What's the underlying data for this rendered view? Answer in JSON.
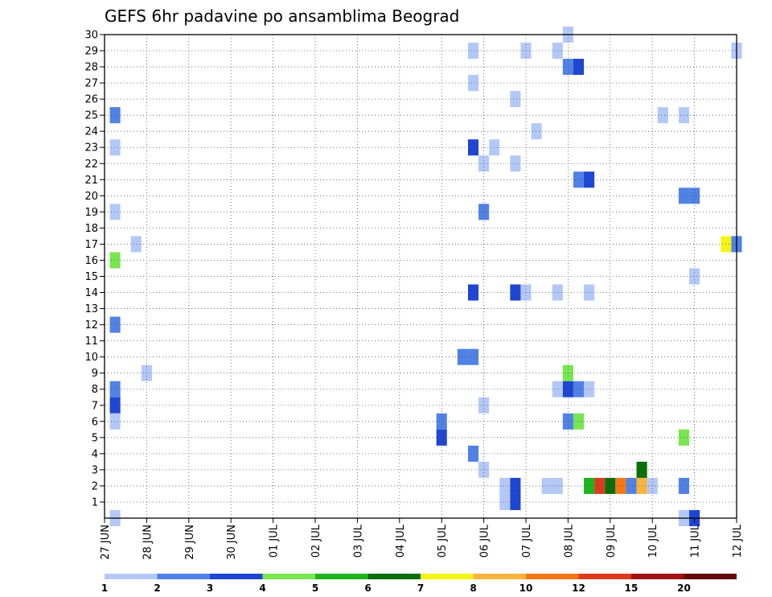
{
  "chart_data": {
    "type": "heatmap",
    "title": "GEFS 6hr padavine po ansamblima Beograd",
    "xlabel": "",
    "ylabel": "",
    "x_ticks": [
      "27 JUN",
      "28 JUN",
      "29 JUN",
      "30 JUN",
      "01 JUL",
      "02 JUL",
      "03 JUL",
      "04 JUL",
      "05 JUL",
      "06 JUL",
      "07 JUL",
      "08 JUL",
      "09 JUL",
      "10 JUL",
      "11 JUL",
      "12 JUL"
    ],
    "y_ticks": [
      1,
      2,
      3,
      4,
      5,
      6,
      7,
      8,
      9,
      10,
      11,
      12,
      13,
      14,
      15,
      16,
      17,
      18,
      19,
      20,
      21,
      22,
      23,
      24,
      25,
      26,
      27,
      28,
      29,
      30
    ],
    "ylim": [
      0,
      30
    ],
    "grid": true,
    "time_step_hours": 6,
    "legend_placement": "bottom",
    "legend": {
      "labels": [
        "1",
        "2",
        "3",
        "4",
        "5",
        "6",
        "7",
        "8",
        "10",
        "12",
        "15",
        "20"
      ],
      "colors": [
        "#b4c8f8",
        "#5082e6",
        "#1e46d2",
        "#78e650",
        "#1eb41e",
        "#0a6e0a",
        "#f5f514",
        "#fab43c",
        "#f57814",
        "#dc3c1e",
        "#a01414",
        "#640a0a"
      ]
    },
    "cells_note": "[day_offset_from_27_JUN, member, precip_class_index]",
    "cells": [
      [
        0.25,
        0,
        0
      ],
      [
        0.25,
        25,
        1
      ],
      [
        0.25,
        23,
        0
      ],
      [
        0.25,
        19,
        0
      ],
      [
        0.25,
        16,
        3
      ],
      [
        0.25,
        12,
        1
      ],
      [
        0.25,
        8,
        1
      ],
      [
        0.25,
        7,
        2
      ],
      [
        0.25,
        6,
        0
      ],
      [
        0.75,
        17,
        0
      ],
      [
        1.0,
        9,
        0
      ],
      [
        8.0,
        6,
        1
      ],
      [
        8.0,
        5,
        2
      ],
      [
        8.5,
        10,
        1
      ],
      [
        8.75,
        10,
        1
      ],
      [
        8.75,
        29,
        0
      ],
      [
        8.75,
        27,
        0
      ],
      [
        8.75,
        23,
        2
      ],
      [
        8.75,
        14,
        2
      ],
      [
        8.75,
        4,
        1
      ],
      [
        9.0,
        22,
        0
      ],
      [
        9.0,
        19,
        1
      ],
      [
        9.0,
        7,
        0
      ],
      [
        9.0,
        3,
        0
      ],
      [
        9.25,
        23,
        0
      ],
      [
        9.5,
        2,
        0
      ],
      [
        9.5,
        1,
        0
      ],
      [
        9.75,
        26,
        0
      ],
      [
        9.75,
        22,
        0
      ],
      [
        9.75,
        14,
        2
      ],
      [
        9.75,
        2,
        2
      ],
      [
        9.75,
        1,
        2
      ],
      [
        10.0,
        29,
        0
      ],
      [
        10.0,
        14,
        0
      ],
      [
        10.25,
        24,
        0
      ],
      [
        10.5,
        2,
        0
      ],
      [
        10.75,
        2,
        0
      ],
      [
        10.75,
        8,
        0
      ],
      [
        10.75,
        14,
        0
      ],
      [
        10.75,
        29,
        0
      ],
      [
        11.0,
        8,
        2
      ],
      [
        11.0,
        28,
        1
      ],
      [
        11.0,
        30,
        0
      ],
      [
        11.0,
        9,
        3
      ],
      [
        11.0,
        6,
        1
      ],
      [
        11.25,
        28,
        2
      ],
      [
        11.25,
        21,
        1
      ],
      [
        11.25,
        8,
        1
      ],
      [
        11.25,
        6,
        3
      ],
      [
        11.5,
        21,
        2
      ],
      [
        11.5,
        14,
        0
      ],
      [
        11.5,
        8,
        0
      ],
      [
        11.5,
        2,
        4
      ],
      [
        11.75,
        2,
        9
      ],
      [
        12.0,
        2,
        5
      ],
      [
        12.25,
        2,
        8
      ],
      [
        12.5,
        2,
        1
      ],
      [
        12.75,
        2,
        7
      ],
      [
        13.0,
        2,
        0
      ],
      [
        12.75,
        3,
        5
      ],
      [
        13.25,
        25,
        0
      ],
      [
        13.75,
        25,
        0
      ],
      [
        13.75,
        20,
        1
      ],
      [
        13.75,
        5,
        3
      ],
      [
        13.75,
        2,
        1
      ],
      [
        13.75,
        0,
        0
      ],
      [
        14.0,
        20,
        1
      ],
      [
        14.0,
        15,
        0
      ],
      [
        14.0,
        0,
        2
      ],
      [
        14.75,
        17,
        6
      ],
      [
        15.0,
        17,
        1
      ],
      [
        15.0,
        29,
        0
      ]
    ]
  }
}
